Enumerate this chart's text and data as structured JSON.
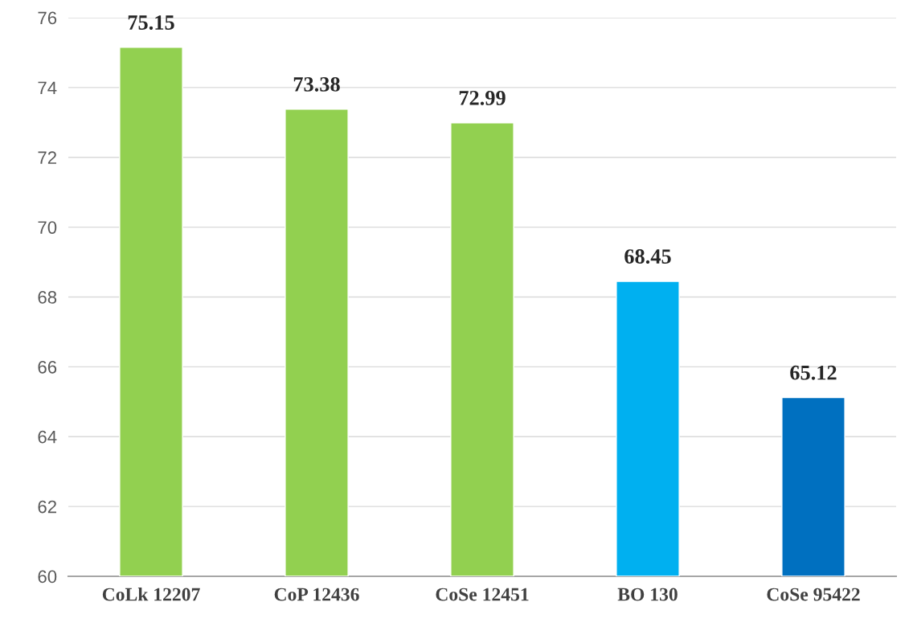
{
  "chart_data": {
    "type": "bar",
    "categories": [
      "CoLk 12207",
      "CoP 12436",
      "CoSe 12451",
      "BO 130",
      "CoSe 95422"
    ],
    "values": [
      75.15,
      73.38,
      72.99,
      68.45,
      65.12
    ],
    "colors": [
      "#92d050",
      "#92d050",
      "#92d050",
      "#00b0f0",
      "#0070c0"
    ],
    "ylim": [
      60,
      76
    ],
    "yticks": [
      60,
      62,
      64,
      66,
      68,
      70,
      72,
      74,
      76
    ],
    "grid": "y",
    "data_labels": true
  }
}
